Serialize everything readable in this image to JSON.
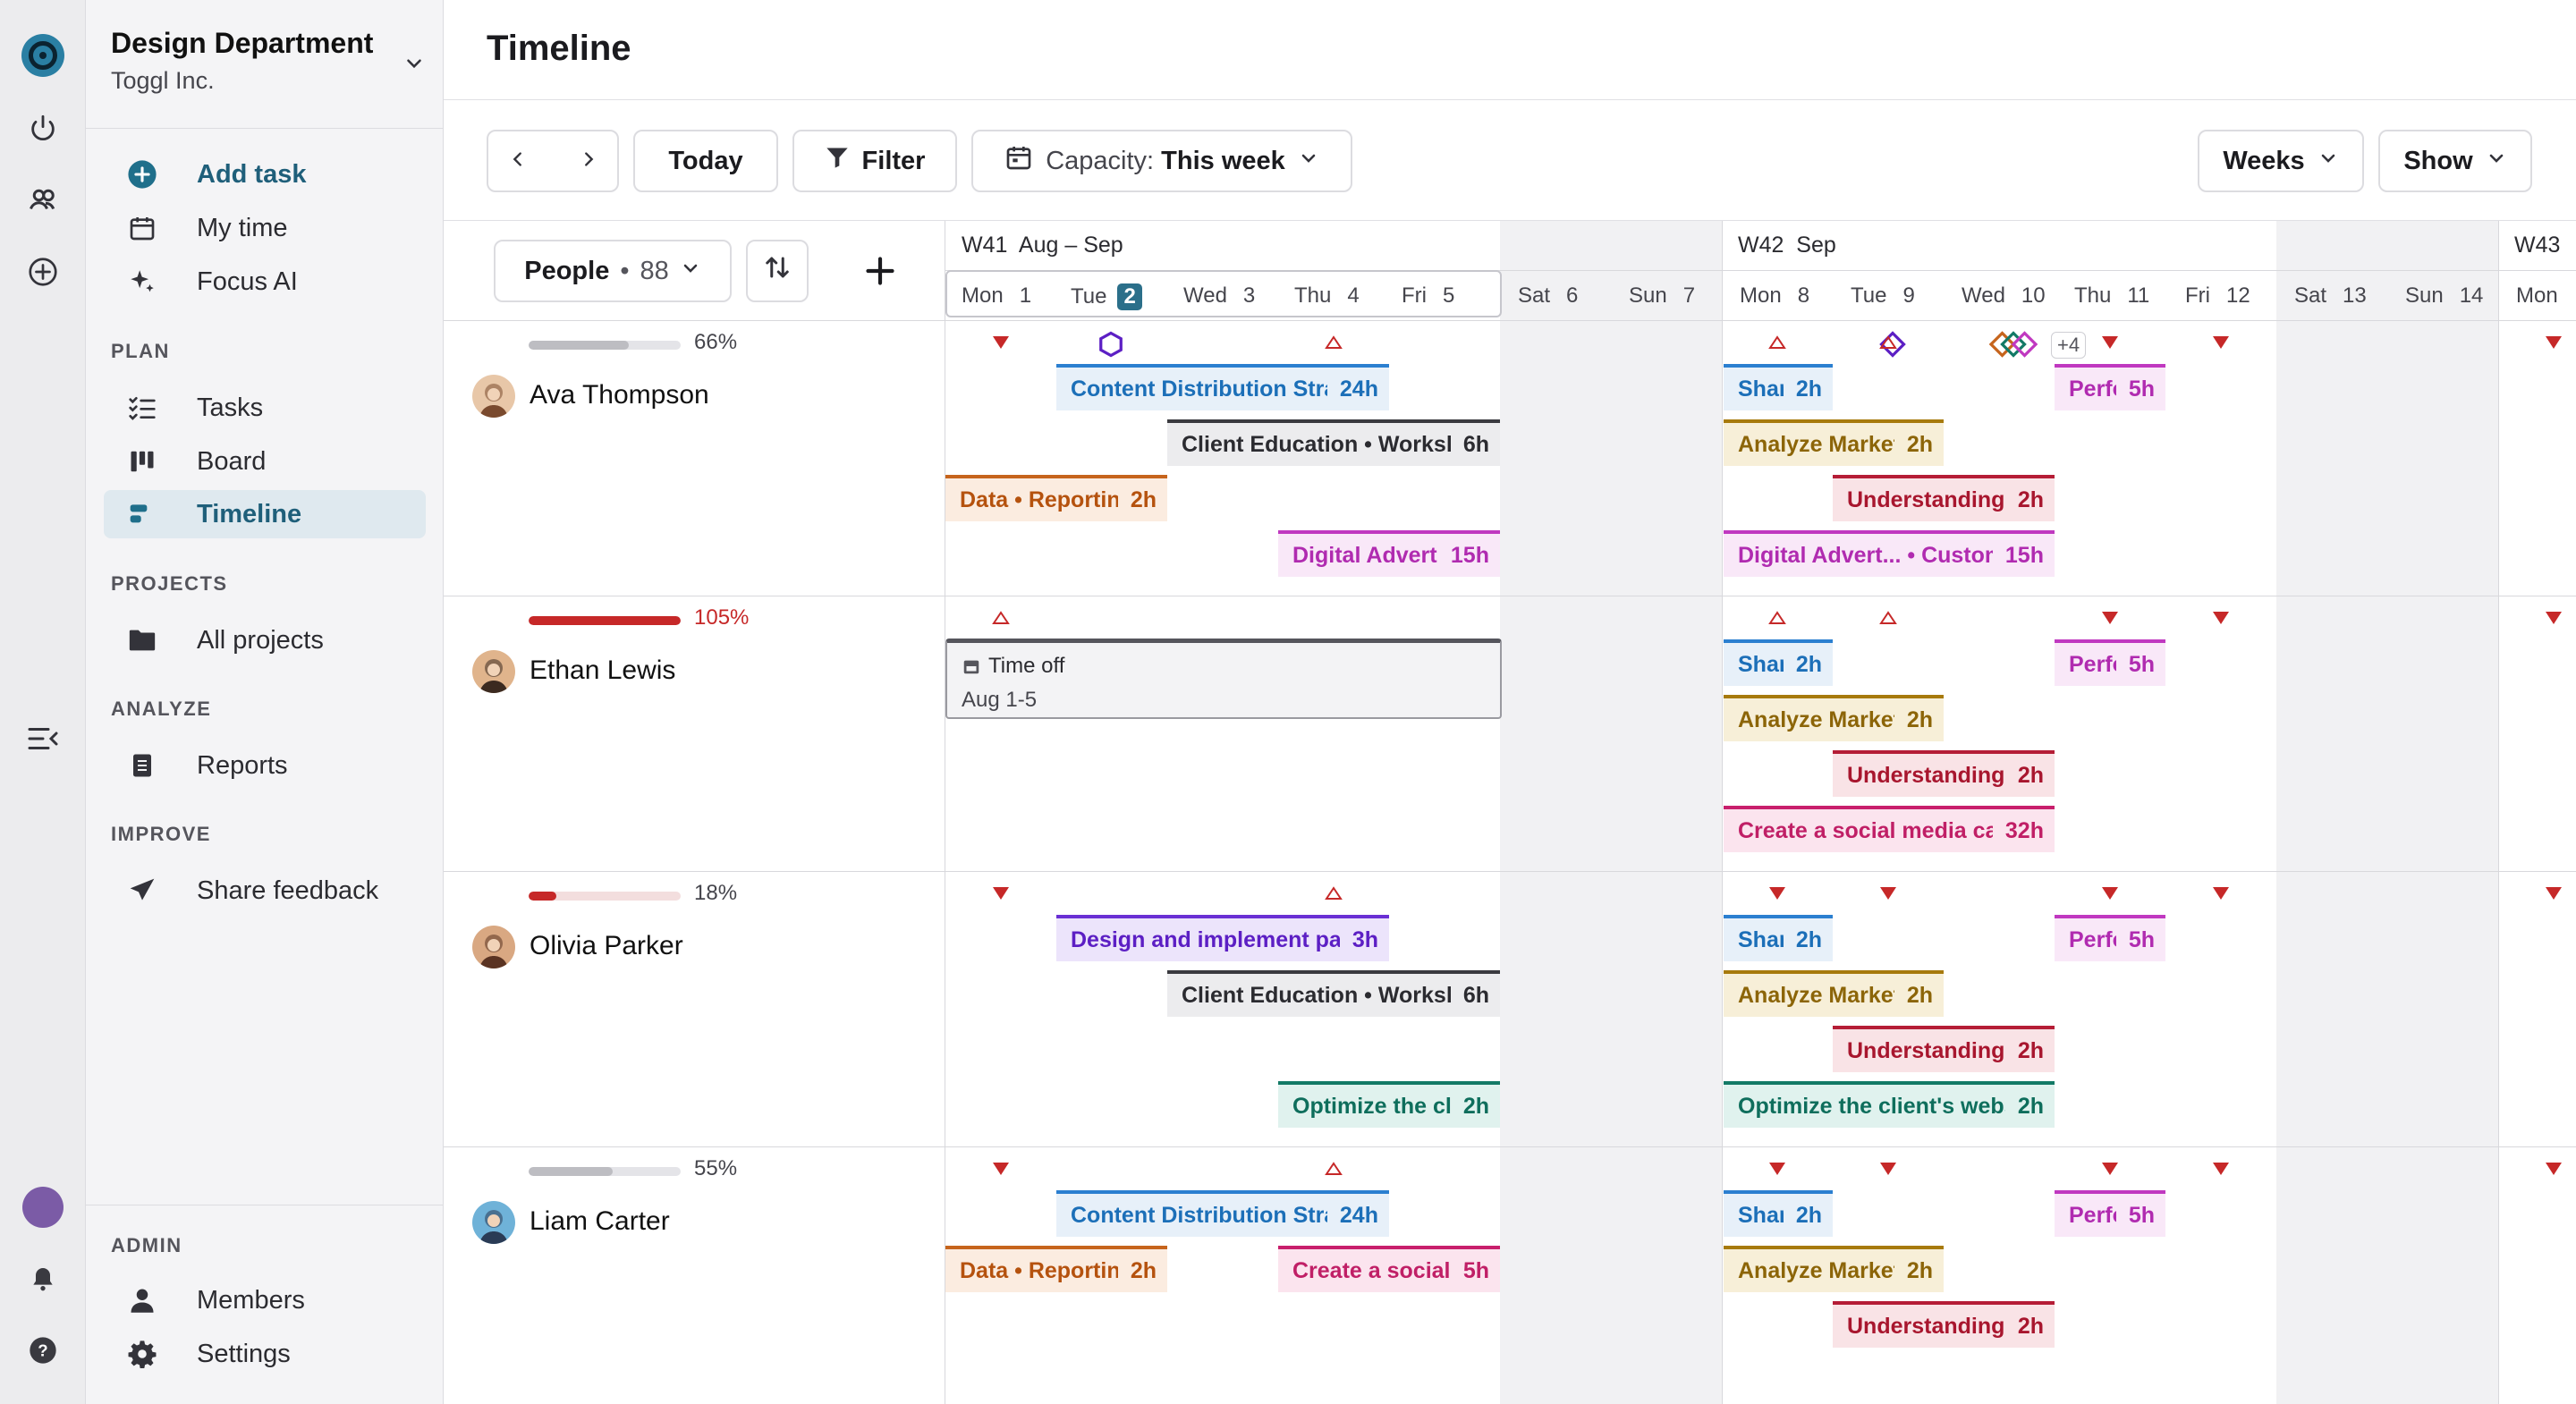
{
  "colors": {
    "blue": {
      "fg": "#1c6fb8",
      "bg": "#e7f0f9",
      "bar": "#2b7fd0"
    },
    "dark": {
      "fg": "#2b2b30",
      "bg": "#ececee",
      "bar": "#3a3a3f"
    },
    "orange": {
      "fg": "#b5520e",
      "bg": "#fbece0",
      "bar": "#c6641c"
    },
    "magenta": {
      "fg": "#b02bb0",
      "bg": "#f9e8f8",
      "bar": "#c038c0"
    },
    "gold": {
      "fg": "#8c6508",
      "bg": "#f7efd8",
      "bar": "#a77a0c"
    },
    "crimson": {
      "fg": "#a8162e",
      "bg": "#f9e3e6",
      "bar": "#b51d36"
    },
    "purple": {
      "fg": "#5c1fc4",
      "bg": "#ece4fb",
      "bar": "#6a2fd4"
    },
    "teal": {
      "fg": "#0e6e5c",
      "bg": "#e0f2ee",
      "bar": "#137a66"
    },
    "pink": {
      "fg": "#c01f66",
      "bg": "#fbe4ee",
      "bar": "#c81f6c"
    },
    "marker_red": "#c62828",
    "overcap_red": "#c62828"
  },
  "sidebar": {
    "workspace": "Design Department",
    "org": "Toggl Inc.",
    "add_task": "Add task",
    "my_time": "My time",
    "focus_ai": "Focus AI",
    "plan_label": "PLAN",
    "tasks": "Tasks",
    "board": "Board",
    "timeline": "Timeline",
    "projects_label": "PROJECTS",
    "all_projects": "All projects",
    "analyze_label": "ANALYZE",
    "reports": "Reports",
    "improve_label": "IMPROVE",
    "share_feedback": "Share feedback",
    "admin_label": "ADMIN",
    "members": "Members",
    "settings": "Settings"
  },
  "header": {
    "title": "Timeline"
  },
  "toolbar": {
    "today": "Today",
    "filter": "Filter",
    "capacity_label": "Capacity:",
    "capacity_value": "This week",
    "weeks": "Weeks",
    "show": "Show"
  },
  "people_header": {
    "label": "People",
    "count": "88"
  },
  "weeks": [
    {
      "label": "W41  Aug – Sep"
    },
    {
      "label": "W42  Sep"
    },
    {
      "label": "W43"
    }
  ],
  "days": [
    {
      "d": "Mon",
      "n": "1"
    },
    {
      "d": "Tue",
      "n": "2",
      "today": true
    },
    {
      "d": "Wed",
      "n": "3"
    },
    {
      "d": "Thu",
      "n": "4"
    },
    {
      "d": "Fri",
      "n": "5"
    },
    {
      "d": "Sat",
      "n": "6"
    },
    {
      "d": "Sun",
      "n": "7"
    },
    {
      "d": "Mon",
      "n": "8"
    },
    {
      "d": "Tue",
      "n": "9"
    },
    {
      "d": "Wed",
      "n": "10"
    },
    {
      "d": "Thu",
      "n": "11"
    },
    {
      "d": "Fri",
      "n": "12"
    },
    {
      "d": "Sat",
      "n": "13"
    },
    {
      "d": "Sun",
      "n": "14"
    },
    {
      "d": "Mon",
      "n": ""
    }
  ],
  "milestone_more": "+4",
  "people": [
    {
      "name": "Ava Thompson",
      "capacity": "66%",
      "capacity_value": 0.66,
      "over": false,
      "markers": [
        {
          "day": 0,
          "type": "filled"
        },
        {
          "day": 3,
          "type": "outline"
        },
        {
          "day": 7,
          "type": "outline"
        },
        {
          "day": 8,
          "type": "outline"
        },
        {
          "day": 10,
          "type": "filled"
        },
        {
          "day": 11,
          "type": "filled"
        },
        {
          "day": 14,
          "type": "filled"
        }
      ],
      "tasks": [
        {
          "name": "Content Distribution Strategy",
          "hours": "24h",
          "color": "blue",
          "start": 1,
          "end": 4,
          "lane": 0
        },
        {
          "name": "Client Education • Workshop",
          "hours": "6h",
          "color": "dark",
          "start": 2,
          "end": 5,
          "lane": 1
        },
        {
          "name": "Data • Reporting",
          "hours": "2h",
          "color": "orange",
          "start": 0,
          "end": 2,
          "lane": 2
        },
        {
          "name": "Digital Advertising",
          "hours": "15h",
          "color": "magenta",
          "start": 3,
          "end": 5,
          "lane": 3
        },
        {
          "name": "Share",
          "hours": "2h",
          "color": "blue",
          "start": 7,
          "end": 8,
          "lane": 0
        },
        {
          "name": "Performance",
          "hours": "5h",
          "color": "magenta",
          "start": 10,
          "end": 11,
          "lane": 0
        },
        {
          "name": "Analyze Market",
          "hours": "2h",
          "color": "gold",
          "start": 7,
          "end": 9,
          "lane": 1
        },
        {
          "name": "Understanding",
          "hours": "2h",
          "color": "crimson",
          "start": 8,
          "end": 10,
          "lane": 2
        },
        {
          "name": "Digital Advert... • Customer",
          "hours": "15h",
          "color": "magenta",
          "start": 7,
          "end": 10,
          "lane": 3
        }
      ]
    },
    {
      "name": "Ethan Lewis",
      "capacity": "105%",
      "capacity_value": 1.05,
      "over": true,
      "timeoff": {
        "label": "Time off",
        "date": "Aug 1-5",
        "start": 0,
        "end": 5
      },
      "markers": [
        {
          "day": 0,
          "type": "outline"
        },
        {
          "day": 7,
          "type": "outline"
        },
        {
          "day": 8,
          "type": "outline"
        },
        {
          "day": 10,
          "type": "filled"
        },
        {
          "day": 11,
          "type": "filled"
        },
        {
          "day": 14,
          "type": "filled"
        }
      ],
      "tasks": [
        {
          "name": "Share",
          "hours": "2h",
          "color": "blue",
          "start": 7,
          "end": 8,
          "lane": 0
        },
        {
          "name": "Performance",
          "hours": "5h",
          "color": "magenta",
          "start": 10,
          "end": 11,
          "lane": 0
        },
        {
          "name": "Analyze Market",
          "hours": "2h",
          "color": "gold",
          "start": 7,
          "end": 9,
          "lane": 1
        },
        {
          "name": "Understanding",
          "hours": "2h",
          "color": "crimson",
          "start": 8,
          "end": 10,
          "lane": 2
        },
        {
          "name": "Create a social media campaign",
          "hours": "32h",
          "color": "pink",
          "start": 7,
          "end": 10,
          "lane": 3
        }
      ]
    },
    {
      "name": "Olivia Parker",
      "capacity": "18%",
      "capacity_value": 0.18,
      "over": false,
      "markers": [
        {
          "day": 0,
          "type": "filled"
        },
        {
          "day": 3,
          "type": "outline"
        },
        {
          "day": 7,
          "type": "filled"
        },
        {
          "day": 8,
          "type": "filled"
        },
        {
          "day": 10,
          "type": "filled"
        },
        {
          "day": 11,
          "type": "filled"
        },
        {
          "day": 14,
          "type": "filled"
        }
      ],
      "tasks": [
        {
          "name": "Design and implement page",
          "hours": "3h",
          "color": "purple",
          "start": 1,
          "end": 4,
          "lane": 0
        },
        {
          "name": "Client Education • Workshop",
          "hours": "6h",
          "color": "dark",
          "start": 2,
          "end": 5,
          "lane": 1
        },
        {
          "name": "Optimize the client's website",
          "hours": "2h",
          "color": "teal",
          "start": 3,
          "end": 5,
          "lane": 3
        },
        {
          "name": "Share",
          "hours": "2h",
          "color": "blue",
          "start": 7,
          "end": 8,
          "lane": 0
        },
        {
          "name": "Performance",
          "hours": "5h",
          "color": "magenta",
          "start": 10,
          "end": 11,
          "lane": 0
        },
        {
          "name": "Analyze Market",
          "hours": "2h",
          "color": "gold",
          "start": 7,
          "end": 9,
          "lane": 1
        },
        {
          "name": "Understanding",
          "hours": "2h",
          "color": "crimson",
          "start": 8,
          "end": 10,
          "lane": 2
        },
        {
          "name": "Optimize the client's website",
          "hours": "2h",
          "color": "teal",
          "start": 7,
          "end": 10,
          "lane": 3
        }
      ]
    },
    {
      "name": "Liam Carter",
      "capacity": "55%",
      "capacity_value": 0.55,
      "over": false,
      "markers": [
        {
          "day": 0,
          "type": "filled"
        },
        {
          "day": 3,
          "type": "outline"
        },
        {
          "day": 7,
          "type": "filled"
        },
        {
          "day": 8,
          "type": "filled"
        },
        {
          "day": 10,
          "type": "filled"
        },
        {
          "day": 11,
          "type": "filled"
        },
        {
          "day": 14,
          "type": "filled"
        }
      ],
      "tasks": [
        {
          "name": "Content Distribution Strategy",
          "hours": "24h",
          "color": "blue",
          "start": 1,
          "end": 4,
          "lane": 0
        },
        {
          "name": "Data • Reporting",
          "hours": "2h",
          "color": "orange",
          "start": 0,
          "end": 2,
          "lane": 1
        },
        {
          "name": "Create a social media campaign",
          "hours": "5h",
          "color": "pink",
          "start": 3,
          "end": 5,
          "lane": 1
        },
        {
          "name": "Share",
          "hours": "2h",
          "color": "blue",
          "start": 7,
          "end": 8,
          "lane": 0
        },
        {
          "name": "Performance",
          "hours": "5h",
          "color": "magenta",
          "start": 10,
          "end": 11,
          "lane": 0
        },
        {
          "name": "Analyze Market",
          "hours": "2h",
          "color": "gold",
          "start": 7,
          "end": 9,
          "lane": 1
        },
        {
          "name": "Understanding",
          "hours": "2h",
          "color": "crimson",
          "start": 8,
          "end": 10,
          "lane": 2
        }
      ]
    }
  ]
}
